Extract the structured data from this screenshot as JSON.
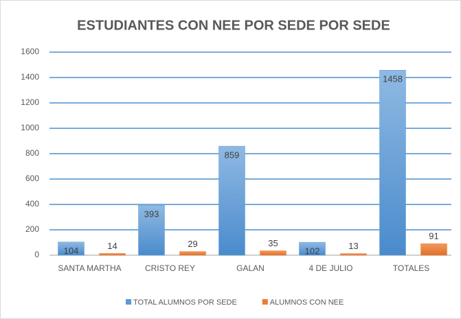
{
  "chart_data": {
    "type": "bar",
    "title": "ESTUDIANTES CON NEE POR SEDE POR SEDE",
    "categories": [
      "SANTA MARTHA",
      "CRISTO REY",
      "GALAN",
      "4 DE JULIO",
      "TOTALES"
    ],
    "series": [
      {
        "name": "TOTAL ALUMNOS POR SEDE",
        "color": "#5b9bd5",
        "values": [
          104,
          393,
          859,
          102,
          1458
        ]
      },
      {
        "name": "ALUMNOS CON NEE",
        "color": "#ed7d31",
        "values": [
          14,
          29,
          35,
          13,
          91
        ]
      }
    ],
    "ylim": [
      0,
      1600
    ],
    "yticks": [
      0,
      200,
      400,
      600,
      800,
      1000,
      1200,
      1400,
      1600
    ],
    "grid": true,
    "legend": "bottom"
  }
}
